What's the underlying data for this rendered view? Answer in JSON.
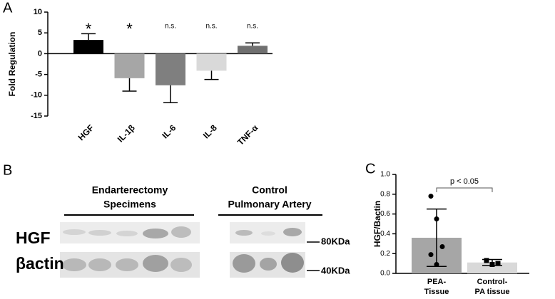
{
  "chart_data": [
    {
      "type": "bar",
      "panel": "A",
      "ylabel": "Fold Regulation",
      "categories": [
        "HGF",
        "IL-1β",
        "IL-6",
        "IL-8",
        "TNF-α"
      ],
      "values": [
        3.3,
        -5.9,
        -7.6,
        -4.1,
        1.9
      ],
      "errors": [
        1.5,
        3.1,
        4.2,
        2.1,
        0.7
      ],
      "colors": [
        "#000000",
        "#a6a6a6",
        "#7f7f7f",
        "#d9d9d9",
        "#707070"
      ],
      "annotations": [
        "*",
        "*",
        "n.s.",
        "n.s.",
        "n.s."
      ],
      "ylim": [
        -15,
        10
      ],
      "yticks": [
        -15,
        -10,
        -5,
        0,
        5,
        10
      ]
    },
    {
      "type": "bar",
      "panel": "C",
      "ylabel": "HGF/Bactin",
      "categories": [
        "PEA-\nTissue",
        "Control-\nPA tissue"
      ],
      "values": [
        0.36,
        0.11
      ],
      "errors": [
        0.29,
        0.03
      ],
      "points": [
        [
          0.78,
          0.55,
          0.27,
          0.19,
          0.09
        ],
        [
          0.13,
          0.09,
          0.1
        ]
      ],
      "markers": [
        "circle",
        "square"
      ],
      "colors": [
        "#a6a6a6",
        "#d9d9d9"
      ],
      "annotation": "p < 0.05",
      "ylim": [
        0,
        1
      ],
      "yticks": [
        {
          "value": 0,
          "label": "0.0"
        },
        0.2,
        0.4,
        0.6,
        0.8,
        {
          "value": 1,
          "label": "1.0"
        }
      ]
    }
  ],
  "blot": {
    "panel": "B",
    "group1": [
      "Endarterectomy",
      "Specimens"
    ],
    "group2": [
      "Control",
      "Pulmonary Artery"
    ],
    "rows": [
      "HGF",
      "βactin"
    ],
    "markers": [
      "80KDa",
      "40KDa"
    ]
  }
}
